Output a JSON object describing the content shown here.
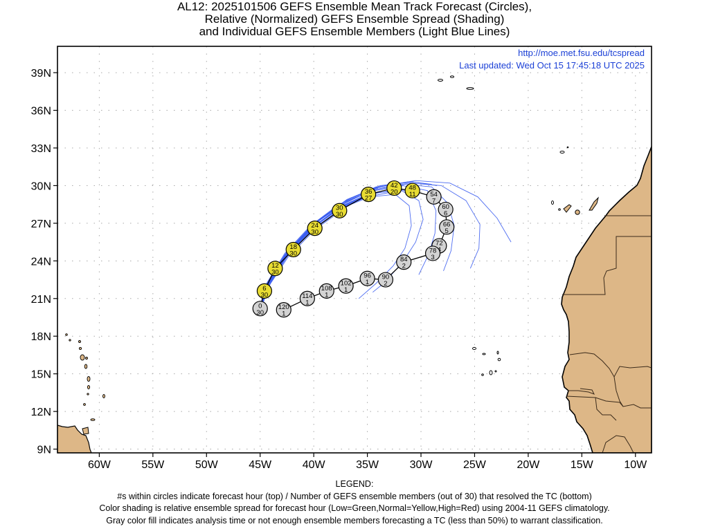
{
  "title": {
    "line1": "AL12: 2025101506 GEFS Ensemble Mean Track Forecast (Circles),",
    "line2": "Relative (Normalized) GEFS Ensemble Spread (Shading)",
    "line3": "and Individual GEFS Ensemble Members (Light Blue Lines)"
  },
  "header": {
    "url": "http://moe.met.fsu.edu/tcspread",
    "updated": "Last updated: Wed Oct 15 17:45:18 UTC 2025"
  },
  "axes": {
    "lon_range": [
      -63.9,
      -8.5
    ],
    "lat_range": [
      8.7,
      41.1
    ],
    "x_ticks": [
      {
        "lon": -60,
        "label": "60W"
      },
      {
        "lon": -55,
        "label": "55W"
      },
      {
        "lon": -50,
        "label": "50W"
      },
      {
        "lon": -45,
        "label": "45W"
      },
      {
        "lon": -40,
        "label": "40W"
      },
      {
        "lon": -35,
        "label": "35W"
      },
      {
        "lon": -30,
        "label": "30W"
      },
      {
        "lon": -25,
        "label": "25W"
      },
      {
        "lon": -20,
        "label": "20W"
      },
      {
        "lon": -15,
        "label": "15W"
      },
      {
        "lon": -10,
        "label": "10W"
      }
    ],
    "y_ticks": [
      {
        "lat": 39,
        "label": "39N"
      },
      {
        "lat": 36,
        "label": "36N"
      },
      {
        "lat": 33,
        "label": "33N"
      },
      {
        "lat": 30,
        "label": "30N"
      },
      {
        "lat": 27,
        "label": "27N"
      },
      {
        "lat": 24,
        "label": "24N"
      },
      {
        "lat": 21,
        "label": "21N"
      },
      {
        "lat": 18,
        "label": "18N"
      },
      {
        "lat": 15,
        "label": "15N"
      },
      {
        "lat": 12,
        "label": "12N"
      },
      {
        "lat": 9,
        "label": "9N"
      }
    ],
    "grid": true
  },
  "colors": {
    "land": "#ddb787",
    "yellow": "#e8dc33",
    "gray": "#d3d3d3",
    "member_line": "#3a5cf0",
    "header_text": "#1a3fd6"
  },
  "track": [
    {
      "hour": "0",
      "members": "30",
      "lon": -45.0,
      "lat": 20.2,
      "fill": "gray"
    },
    {
      "hour": "6",
      "members": "30",
      "lon": -44.6,
      "lat": 21.6,
      "fill": "yellow"
    },
    {
      "hour": "12",
      "members": "30",
      "lon": -43.6,
      "lat": 23.4,
      "fill": "yellow"
    },
    {
      "hour": "18",
      "members": "30",
      "lon": -41.9,
      "lat": 24.9,
      "fill": "yellow"
    },
    {
      "hour": "24",
      "members": "30",
      "lon": -39.9,
      "lat": 26.6,
      "fill": "yellow"
    },
    {
      "hour": "30",
      "members": "30",
      "lon": -37.6,
      "lat": 28.0,
      "fill": "yellow"
    },
    {
      "hour": "36",
      "members": "27",
      "lon": -34.9,
      "lat": 29.3,
      "fill": "yellow"
    },
    {
      "hour": "42",
      "members": "20",
      "lon": -32.5,
      "lat": 29.8,
      "fill": "yellow"
    },
    {
      "hour": "48",
      "members": "11",
      "lon": -30.8,
      "lat": 29.6,
      "fill": "yellow"
    },
    {
      "hour": "54",
      "members": "7",
      "lon": -28.8,
      "lat": 29.1,
      "fill": "gray"
    },
    {
      "hour": "60",
      "members": "6",
      "lon": -27.7,
      "lat": 28.1,
      "fill": "gray"
    },
    {
      "hour": "66",
      "members": "5",
      "lon": -27.6,
      "lat": 26.7,
      "fill": "gray"
    },
    {
      "hour": "72",
      "members": "4",
      "lon": -28.3,
      "lat": 25.2,
      "fill": "gray"
    },
    {
      "hour": "78",
      "members": "3",
      "lon": -28.9,
      "lat": 24.6,
      "fill": "gray"
    },
    {
      "hour": "84",
      "members": "2",
      "lon": -31.6,
      "lat": 23.9,
      "fill": "gray"
    },
    {
      "hour": "90",
      "members": "2",
      "lon": -33.3,
      "lat": 22.5,
      "fill": "gray"
    },
    {
      "hour": "96",
      "members": "1",
      "lon": -35.0,
      "lat": 22.6,
      "fill": "gray"
    },
    {
      "hour": "102",
      "members": "1",
      "lon": -37.0,
      "lat": 22.0,
      "fill": "gray"
    },
    {
      "hour": "108",
      "members": "1",
      "lon": -38.8,
      "lat": 21.6,
      "fill": "gray"
    },
    {
      "hour": "114",
      "members": "1",
      "lon": -40.6,
      "lat": 21.0,
      "fill": "gray"
    },
    {
      "hour": "120",
      "members": "1",
      "lon": -42.8,
      "lat": 20.1,
      "fill": "gray"
    }
  ],
  "member_tracks": [
    [
      [
        -45.0,
        20.3
      ],
      [
        -44.2,
        22.3
      ],
      [
        -42.5,
        24.6
      ],
      [
        -40.0,
        26.9
      ],
      [
        -37.2,
        28.6
      ],
      [
        -34.3,
        29.7
      ],
      [
        -31.5,
        30.1
      ],
      [
        -29.0,
        29.9
      ],
      [
        -27.5,
        28.6
      ],
      [
        -26.9,
        26.8
      ],
      [
        -27.2,
        24.8
      ],
      [
        -27.9,
        23.2
      ]
    ],
    [
      [
        -45.1,
        20.2
      ],
      [
        -44.4,
        22.1
      ],
      [
        -42.7,
        24.5
      ],
      [
        -40.2,
        26.8
      ],
      [
        -37.3,
        28.5
      ],
      [
        -34.2,
        29.8
      ],
      [
        -31.0,
        30.2
      ],
      [
        -28.1,
        30.0
      ],
      [
        -25.8,
        28.8
      ],
      [
        -24.5,
        26.9
      ],
      [
        -24.6,
        25.0
      ],
      [
        -25.4,
        23.4
      ]
    ],
    [
      [
        -44.9,
        20.2
      ],
      [
        -44.1,
        22.2
      ],
      [
        -42.3,
        24.7
      ],
      [
        -39.8,
        27.0
      ],
      [
        -37.0,
        28.8
      ],
      [
        -34.0,
        29.9
      ],
      [
        -30.5,
        30.4
      ],
      [
        -27.3,
        30.2
      ],
      [
        -24.7,
        29.1
      ],
      [
        -22.9,
        27.4
      ],
      [
        -21.6,
        25.5
      ]
    ],
    [
      [
        -45.0,
        20.2
      ],
      [
        -44.3,
        22.2
      ],
      [
        -42.6,
        24.5
      ],
      [
        -40.1,
        26.7
      ],
      [
        -37.3,
        28.4
      ],
      [
        -34.5,
        29.4
      ],
      [
        -31.8,
        29.6
      ],
      [
        -30.2,
        28.8
      ],
      [
        -29.8,
        27.3
      ],
      [
        -30.5,
        25.5
      ],
      [
        -31.7,
        23.9
      ],
      [
        -33.5,
        22.2
      ],
      [
        -34.5,
        21.5
      ]
    ],
    [
      [
        -45.0,
        20.2
      ],
      [
        -44.2,
        22.1
      ],
      [
        -42.5,
        24.4
      ],
      [
        -40.0,
        26.6
      ],
      [
        -37.4,
        28.2
      ],
      [
        -34.8,
        29.1
      ],
      [
        -32.4,
        29.3
      ],
      [
        -31.1,
        28.4
      ],
      [
        -30.9,
        26.8
      ],
      [
        -31.5,
        25.0
      ],
      [
        -32.6,
        23.6
      ],
      [
        -34.2,
        22.2
      ],
      [
        -35.8,
        21.0
      ]
    ],
    [
      [
        -45.0,
        20.2
      ],
      [
        -44.3,
        22.2
      ],
      [
        -42.6,
        24.6
      ],
      [
        -40.2,
        26.8
      ],
      [
        -37.4,
        28.6
      ],
      [
        -34.5,
        29.6
      ],
      [
        -31.7,
        30.0
      ],
      [
        -29.4,
        29.6
      ],
      [
        -28.6,
        28.0
      ],
      [
        -28.7,
        26.2
      ],
      [
        -29.3,
        24.5
      ],
      [
        -30.2,
        22.9
      ]
    ],
    [
      [
        -45.0,
        20.2
      ],
      [
        -44.2,
        22.2
      ],
      [
        -42.5,
        24.6
      ],
      [
        -40.1,
        26.9
      ],
      [
        -37.2,
        28.7
      ],
      [
        -34.2,
        29.9
      ],
      [
        -30.9,
        30.3
      ],
      [
        -29.0,
        30.1
      ]
    ],
    [
      [
        -45.0,
        20.2
      ],
      [
        -44.3,
        22.1
      ],
      [
        -42.7,
        24.4
      ],
      [
        -40.3,
        26.6
      ],
      [
        -37.6,
        28.2
      ],
      [
        -34.7,
        29.3
      ],
      [
        -32.2,
        29.7
      ],
      [
        -30.5,
        29.5
      ]
    ],
    [
      [
        -45.0,
        20.2
      ],
      [
        -44.1,
        22.3
      ],
      [
        -42.3,
        24.8
      ],
      [
        -39.7,
        27.1
      ],
      [
        -36.9,
        28.9
      ],
      [
        -33.8,
        30.0
      ],
      [
        -30.8,
        30.3
      ],
      [
        -28.5,
        30.0
      ]
    ],
    [
      [
        -45.0,
        20.2
      ],
      [
        -44.4,
        22.0
      ],
      [
        -42.8,
        24.3
      ],
      [
        -40.4,
        26.5
      ],
      [
        -37.8,
        28.1
      ],
      [
        -35.1,
        29.1
      ],
      [
        -32.6,
        29.5
      ]
    ],
    [
      [
        -45.0,
        20.2
      ],
      [
        -44.2,
        22.2
      ],
      [
        -42.4,
        24.6
      ],
      [
        -39.9,
        26.8
      ],
      [
        -37.1,
        28.5
      ],
      [
        -34.3,
        29.6
      ],
      [
        -31.6,
        30.0
      ]
    ],
    [
      [
        -45.0,
        20.2
      ],
      [
        -44.3,
        22.3
      ],
      [
        -42.5,
        24.7
      ],
      [
        -40.0,
        27.0
      ],
      [
        -37.0,
        28.8
      ],
      [
        -34.0,
        29.9
      ],
      [
        -31.2,
        30.3
      ]
    ],
    [
      [
        -45.0,
        20.2
      ],
      [
        -44.5,
        22.0
      ],
      [
        -42.9,
        24.2
      ],
      [
        -40.6,
        26.4
      ],
      [
        -38.0,
        28.0
      ],
      [
        -35.3,
        29.0
      ]
    ],
    [
      [
        -45.0,
        20.2
      ],
      [
        -44.0,
        22.3
      ],
      [
        -42.2,
        24.7
      ],
      [
        -39.6,
        27.0
      ],
      [
        -36.8,
        28.8
      ],
      [
        -34.0,
        29.8
      ]
    ],
    [
      [
        -45.0,
        20.2
      ],
      [
        -44.3,
        22.1
      ],
      [
        -42.6,
        24.4
      ],
      [
        -40.2,
        26.6
      ],
      [
        -37.5,
        28.3
      ],
      [
        -34.6,
        29.4
      ]
    ],
    [
      [
        -45.0,
        20.2
      ],
      [
        -44.2,
        22.2
      ],
      [
        -42.5,
        24.5
      ],
      [
        -40.0,
        26.7
      ],
      [
        -37.2,
        28.4
      ],
      [
        -34.4,
        29.5
      ]
    ],
    [
      [
        -45.0,
        20.2
      ],
      [
        -44.4,
        22.2
      ],
      [
        -42.7,
        24.6
      ],
      [
        -40.3,
        26.8
      ],
      [
        -37.5,
        28.6
      ]
    ],
    [
      [
        -45.0,
        20.2
      ],
      [
        -44.1,
        22.1
      ],
      [
        -42.4,
        24.3
      ],
      [
        -39.9,
        26.5
      ],
      [
        -37.1,
        28.2
      ]
    ]
  ],
  "legend": {
    "heading": "LEGEND:",
    "line1": "#s within circles indicate forecast hour (top) / Number of GEFS ensemble members (out of 30) that resolved the TC (bottom)",
    "line2": "Color shading is relative ensemble spread for forecast hour (Low=Green,Normal=Yellow,High=Red) using 2004-11 GEFS climatology.",
    "line3": "Gray color fill indicates analysis time or not enough ensemble members forecasting a TC (less than 50%) to warrant classification."
  }
}
